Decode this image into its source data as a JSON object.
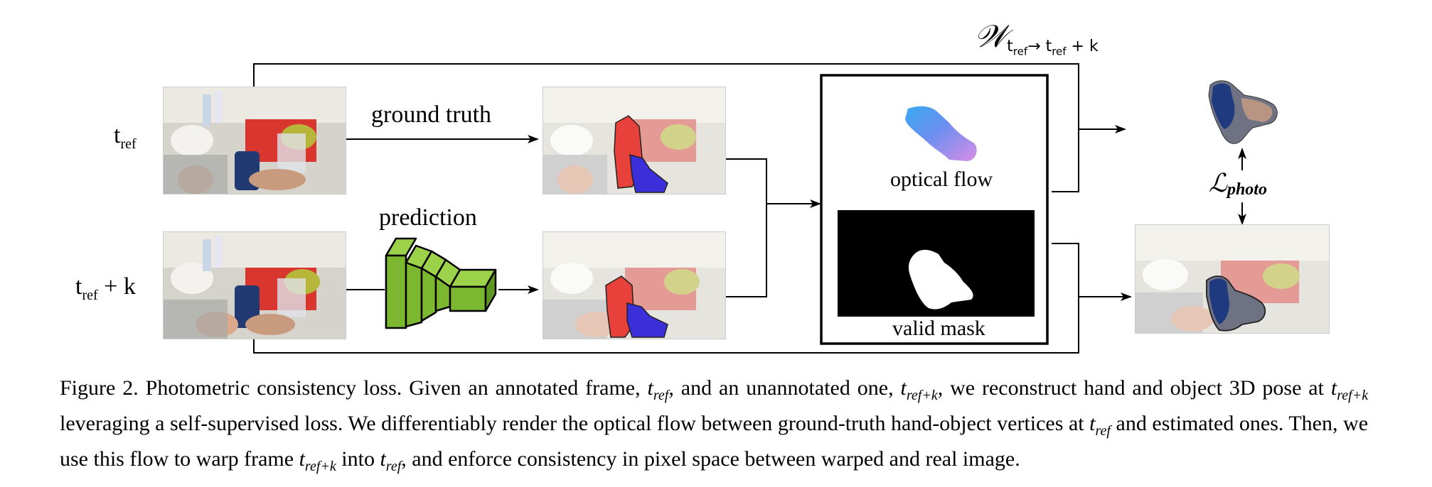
{
  "figure": {
    "labels": {
      "t_ref_main": "t",
      "t_ref_sub": "ref",
      "t_refk_main": "t",
      "t_refk_sub": "ref",
      "t_refk_suffix": " + k",
      "ground_truth": "ground truth",
      "prediction": "prediction",
      "optical_flow": "optical flow",
      "valid_mask": "valid mask",
      "warp_symbol": "𝒲",
      "warp_sub": "t",
      "warp_sub_ref": "ref",
      "warp_arrow": "→ ",
      "warp_sub2": "t",
      "warp_sub2_ref": "ref",
      "warp_sub2_suffix": " + k",
      "loss_symbol": "ℒ",
      "loss_sub": "photo"
    },
    "colors": {
      "network_green": "#7cb82f",
      "object_red": "#e8413b",
      "hand_blue": "#3a2fd8",
      "flow_blue": "#4a9af0",
      "flow_violet": "#c58be8"
    }
  },
  "caption": {
    "figure_label": "Figure 2.",
    "title": "Photometric consistency loss.",
    "part1": "Given an annotated frame,",
    "t1": "t",
    "t1_sub": "ref",
    "part2": ", and an unannotated one,",
    "t2": "t",
    "t2_sub": "ref+k",
    "part3": ", we reconstruct hand and object 3D pose at",
    "t3": "t",
    "t3_sub": "ref+k",
    "part4": "leveraging a self-supervised loss. We differentiably render the optical flow between ground-truth hand-object vertices at",
    "t4": "t",
    "t4_sub": "ref",
    "part5": "and estimated ones. Then, we use this flow to warp frame",
    "t5": "t",
    "t5_sub": "ref+k",
    "part6": "into",
    "t6": "t",
    "t6_sub": "ref",
    "part7": ", and enforce consistency in pixel space between warped and real image."
  }
}
